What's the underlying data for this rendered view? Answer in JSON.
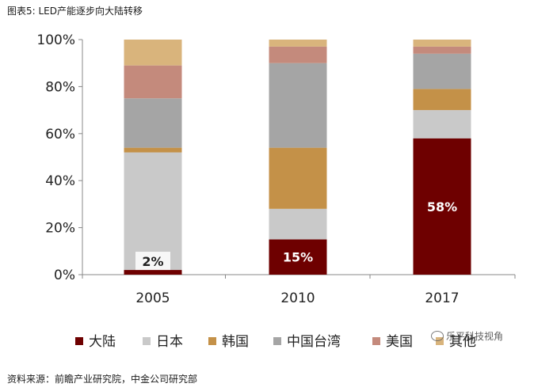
{
  "title": "图表5: LED产能逐步向大陆转移",
  "source": "资料来源：前瞻产业研究院，中金公司研究部",
  "watermark": "乐平科技视角",
  "chart_data": {
    "type": "bar",
    "stacked": true,
    "categories": [
      "2005",
      "2010",
      "2017"
    ],
    "ylim": [
      0,
      100
    ],
    "yticks": [
      0,
      20,
      40,
      60,
      80,
      100
    ],
    "ytick_labels": [
      "0%",
      "20%",
      "40%",
      "60%",
      "80%",
      "100%"
    ],
    "legend_position": "bottom",
    "series": [
      {
        "name": "大陆",
        "color": "#6e0000",
        "values": [
          2,
          15,
          58
        ]
      },
      {
        "name": "日本",
        "color": "#c9c9c9",
        "values": [
          50,
          13,
          12
        ]
      },
      {
        "name": "韩国",
        "color": "#c49148",
        "values": [
          2,
          26,
          9
        ]
      },
      {
        "name": "中国台湾",
        "color": "#a5a5a5",
        "values": [
          21,
          36,
          15
        ]
      },
      {
        "name": "美国",
        "color": "#c48a7c",
        "values": [
          14,
          7,
          3
        ]
      },
      {
        "name": "其他",
        "color": "#d9b47c",
        "values": [
          11,
          3,
          3
        ]
      }
    ],
    "data_labels": [
      {
        "category": "2005",
        "series": "大陆",
        "text": "2%",
        "color": "#222222",
        "boxed": true
      },
      {
        "category": "2010",
        "series": "大陆",
        "text": "15%",
        "color": "#ffffff",
        "boxed": false
      },
      {
        "category": "2017",
        "series": "大陆",
        "text": "58%",
        "color": "#ffffff",
        "boxed": false
      }
    ]
  }
}
